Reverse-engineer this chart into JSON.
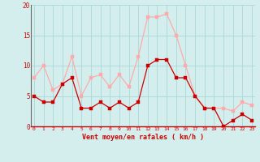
{
  "xlabel": "Vent moyen/en rafales ( km/h )",
  "x": [
    0,
    1,
    2,
    3,
    4,
    5,
    6,
    7,
    8,
    9,
    10,
    11,
    12,
    13,
    14,
    15,
    16,
    17,
    18,
    19,
    20,
    21,
    22,
    23
  ],
  "wind_avg": [
    5,
    4,
    4,
    7,
    8,
    3,
    3,
    4,
    3,
    4,
    3,
    4,
    10,
    11,
    11,
    8,
    8,
    5,
    3,
    3,
    0,
    1,
    2,
    1
  ],
  "wind_gust": [
    8,
    10,
    6,
    7,
    11.5,
    5,
    8,
    8.5,
    6.5,
    8.5,
    6.5,
    11.5,
    18,
    18,
    18.5,
    15,
    10,
    5,
    3,
    3,
    3,
    2.5,
    4,
    3.5
  ],
  "color_avg": "#cc0000",
  "color_gust": "#ffaaaa",
  "bg_color": "#d4eeee",
  "grid_color": "#aad8d8",
  "ylim": [
    0,
    20
  ],
  "yticks": [
    0,
    5,
    10,
    15,
    20
  ],
  "xlim": [
    -0.3,
    23.3
  ],
  "axis_label_color": "#cc0000",
  "tick_color": "#cc0000",
  "markersize": 2.5
}
